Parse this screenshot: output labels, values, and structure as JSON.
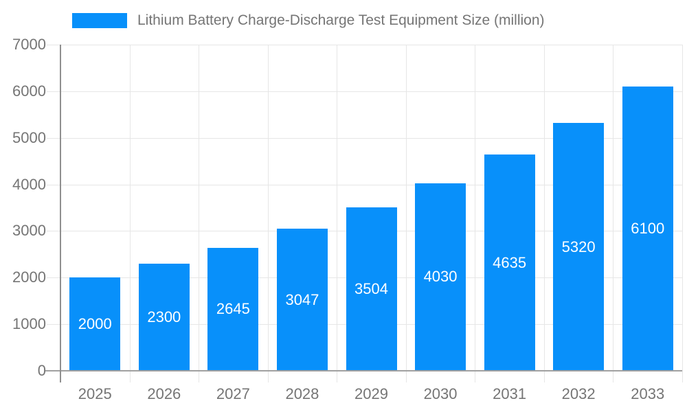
{
  "chart_data": {
    "type": "bar",
    "title": "Lithium Battery Charge-Discharge Test Equipment Size (million)",
    "legend": "Lithium Battery Charge-Discharge Test Equipment Size (million)",
    "legend_position": "top",
    "categories": [
      "2025",
      "2026",
      "2027",
      "2028",
      "2029",
      "2030",
      "2031",
      "2032",
      "2033"
    ],
    "values": [
      2000,
      2300,
      2645,
      3047,
      3504,
      4030,
      4635,
      5320,
      6100
    ],
    "yticks": [
      0,
      1000,
      2000,
      3000,
      4000,
      5000,
      6000,
      7000
    ],
    "ylim": [
      0,
      7000
    ],
    "xlabel": "",
    "ylabel": "",
    "grid": true,
    "bar_color": "#0890fa",
    "value_label_color": "#ffffff",
    "axis_label_color": "#757575"
  }
}
